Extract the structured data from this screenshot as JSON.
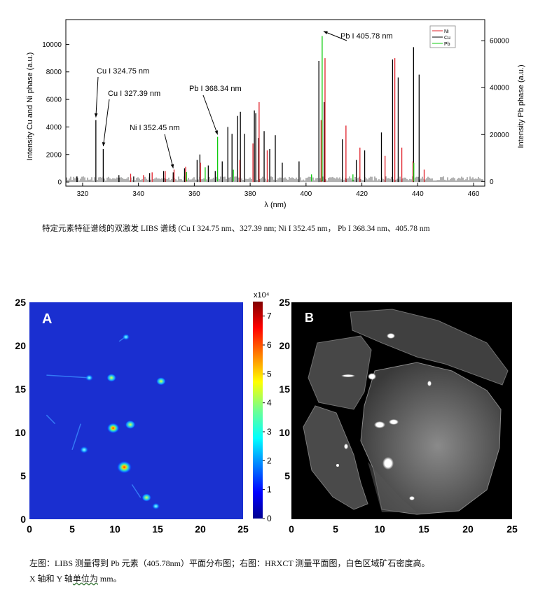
{
  "spectrum_chart": {
    "ylabel_left": "Intensity Cu and Ni phase (a.u.)",
    "ylabel_right": "Intensity Pb phase (a.u.)",
    "xlabel": "λ (nm)",
    "annotations": [
      "Cu I 324.75 nm",
      "Cu I 327.39 nm",
      "Ni I 352.45 nm",
      "Pb I 368.34 nm",
      "Pb I 405.78 nm"
    ],
    "legend": [
      "Ni",
      "Cu",
      "Pb"
    ],
    "colors": {
      "Ni": "#e0202a",
      "Cu": "#000000",
      "Pb": "#10cc10"
    }
  },
  "caption_top": "特定元素特征谱线的双激发 LIBS  谱线 (Cu I 324.75 nm、327.39 nm; Ni I 352.45 nm， Pb I 368.34 nm、405.78 nm",
  "map_a": {
    "label": "A",
    "colorbar_exponent": "x10⁴"
  },
  "map_b": {
    "label": "B"
  },
  "caption_bottom": {
    "line1": "左图：LIBS 测量得到 Pb 元素（405.78nm）平面分布图；右图：HRXCT 测量平面图，白色区域矿石密度高。",
    "line2_pre": "X 轴和 Y 轴",
    "line2_wavy": "单位为",
    "line2_post": " mm。"
  },
  "chart_data": [
    {
      "type": "line",
      "title": "",
      "xlabel": "λ (nm)",
      "ylabel": "Intensity Cu and Ni phase (a.u.)",
      "ylabel_right": "Intensity Pb phase (a.u.)",
      "xlim": [
        314,
        464
      ],
      "ylim": [
        -300,
        11800
      ],
      "ylim_right": [
        -2000,
        69000
      ],
      "xticks": [
        320,
        340,
        360,
        380,
        400,
        420,
        440,
        460
      ],
      "yticks": [
        0,
        2000,
        4000,
        6000,
        8000,
        10000
      ],
      "yticks_right": [
        0,
        20000,
        40000,
        60000
      ],
      "legend_position": "top-right",
      "series": [
        {
          "name": "Cu",
          "axis": "left",
          "x": [
            318.0,
            324.75,
            327.39,
            333.0,
            338.3,
            344.0,
            349.0,
            352.45,
            356.5,
            361.0,
            362.0,
            365.0,
            367.5,
            370.0,
            372.0,
            373.5,
            375.5,
            376.5,
            378.0,
            381.5,
            382.0,
            383.0,
            385.0,
            387.0,
            389.0,
            391.5,
            397.5,
            404.6,
            406.5,
            413.0,
            418.0,
            421.0,
            427.0,
            431.0,
            433.0,
            438.5,
            440.5
          ],
          "y": [
            400,
            4500,
            2400,
            500,
            400,
            650,
            800,
            700,
            1000,
            1600,
            2000,
            1200,
            800,
            1500,
            4000,
            3500,
            4800,
            5100,
            3500,
            5200,
            5000,
            3200,
            3700,
            2400,
            3400,
            1400,
            1500,
            8800,
            5800,
            3100,
            1600,
            2300,
            3600,
            8900,
            7600,
            9800,
            7800
          ]
        },
        {
          "name": "Ni",
          "axis": "left",
          "x": [
            336.9,
            341.5,
            344.6,
            349.3,
            352.45,
            356.6,
            361.9,
            376.0,
            380.7,
            382.9,
            385.8,
            405.1,
            406.5,
            414.0,
            419.0,
            428.0,
            431.5,
            434.0,
            438.0,
            442.0
          ],
          "y": [
            600,
            500,
            700,
            800,
            900,
            1100,
            1400,
            1600,
            2800,
            5800,
            2300,
            4500,
            9000,
            4100,
            2500,
            1900,
            9000,
            2500,
            1500,
            900
          ]
        },
        {
          "name": "Pb",
          "axis": "right",
          "x": [
            357.2,
            363.9,
            368.34,
            373.99,
            401.96,
            405.78,
            416.8,
            438.6
          ],
          "y": [
            4000,
            6000,
            19000,
            5000,
            3000,
            62000,
            3000,
            8000
          ]
        }
      ]
    },
    {
      "type": "heatmap",
      "title": "A",
      "xlim": [
        0,
        25
      ],
      "ylim": [
        0,
        25
      ],
      "xticks": [
        0,
        5,
        10,
        15,
        20,
        25
      ],
      "yticks": [
        0,
        5,
        10,
        15,
        20,
        25
      ],
      "colorbar": {
        "min": 0,
        "max": 7.5,
        "exponent": "x10⁴",
        "ticks": [
          0,
          1,
          2,
          3,
          4,
          5,
          6,
          7
        ]
      },
      "points": [
        {
          "x": 11.1,
          "y": 6.0,
          "value": 6.0
        },
        {
          "x": 9.8,
          "y": 10.5,
          "value": 4.5
        },
        {
          "x": 11.8,
          "y": 10.9,
          "value": 3.0
        },
        {
          "x": 9.6,
          "y": 16.3,
          "value": 2.5
        },
        {
          "x": 13.7,
          "y": 2.5,
          "value": 2.5
        },
        {
          "x": 15.4,
          "y": 15.9,
          "value": 2.5
        },
        {
          "x": 6.4,
          "y": 8.0,
          "value": 2.0
        },
        {
          "x": 7.0,
          "y": 16.3,
          "value": 1.5
        },
        {
          "x": 11.3,
          "y": 21.0,
          "value": 1.2
        },
        {
          "x": 14.8,
          "y": 1.5,
          "value": 1.5
        }
      ]
    }
  ]
}
